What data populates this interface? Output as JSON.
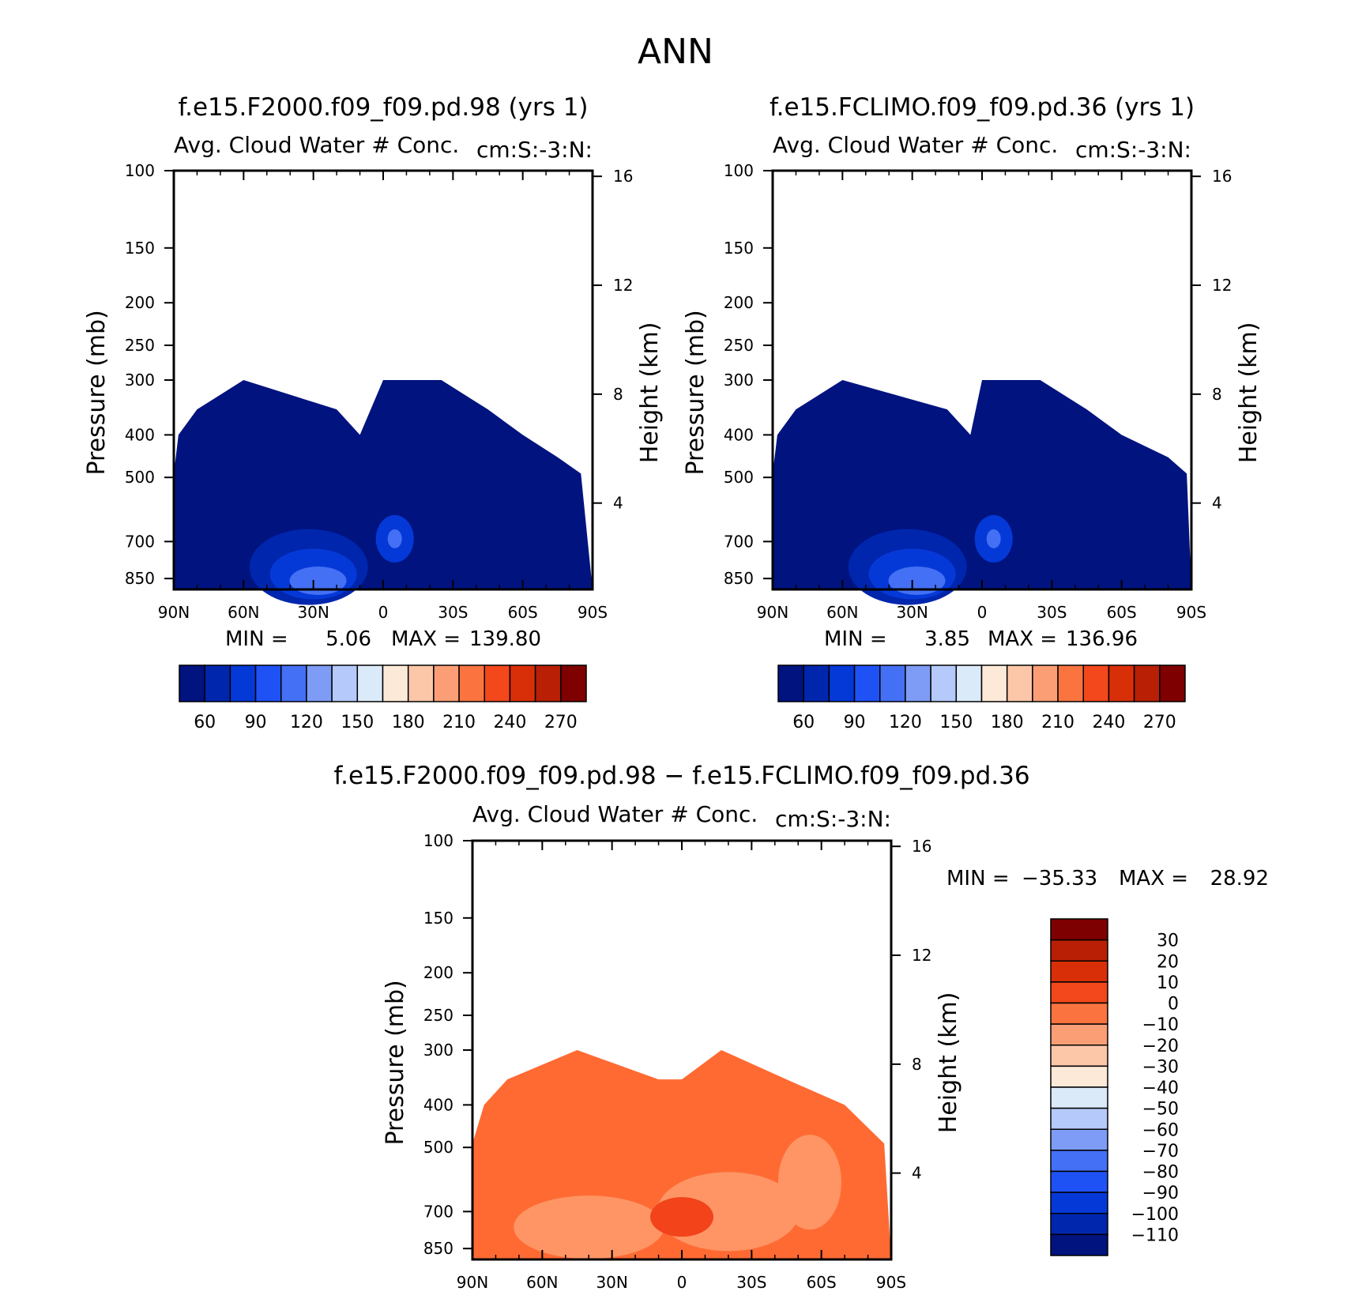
{
  "figure": {
    "title": "ANN"
  },
  "colors": {
    "field_fill": "#00137f",
    "diff_fill": "#ff6a33",
    "diff_fill_light": "#ff9565",
    "diff_fill_dark": "#f2431a",
    "axis": "#000000"
  },
  "chart_data": [
    {
      "type": "contour",
      "id": "panel1",
      "case_title": "f.e15.F2000.f09_f09.pd.98 (yrs 1)",
      "variable_title": "Avg. Cloud Water # Conc.",
      "units": "cm:S:-3:N:",
      "xlabel": "",
      "ylabel": "Pressure (mb)",
      "ylabel_right": "Height (km)",
      "x_ticks": [
        "90N",
        "60N",
        "30N",
        "0",
        "30S",
        "60S",
        "90S"
      ],
      "x_range": [
        90,
        -90
      ],
      "y_ticks": [
        100,
        150,
        200,
        250,
        300,
        400,
        500,
        700,
        850
      ],
      "y_range": [
        100,
        900
      ],
      "y_scale": "log",
      "height_ticks": [
        4,
        8,
        12,
        16
      ],
      "min_label": "MIN =",
      "min": "5.06",
      "max_label": "MAX =",
      "max": "139.80",
      "colorbar_labels": [
        "60",
        "90",
        "120",
        "150",
        "180",
        "210",
        "240",
        "270"
      ],
      "colorbar_colors": [
        "#00137f",
        "#0026ad",
        "#0539d7",
        "#1f52f5",
        "#4470f5",
        "#7e9cf5",
        "#b5c9fa",
        "#dbeaf9",
        "#fde9d7",
        "#fcc7a9",
        "#fb9e76",
        "#fb7440",
        "#f2481c",
        "#d82f08",
        "#b81f04",
        "#7f0000"
      ],
      "field_top_profile": [
        {
          "lat": 90,
          "p": 490
        },
        {
          "lat": 88,
          "p": 400
        },
        {
          "lat": 80,
          "p": 350
        },
        {
          "lat": 60,
          "p": 300
        },
        {
          "lat": 20,
          "p": 350
        },
        {
          "lat": 10,
          "p": 400
        },
        {
          "lat": 0,
          "p": 300
        },
        {
          "lat": -25,
          "p": 300
        },
        {
          "lat": -45,
          "p": 350
        },
        {
          "lat": -60,
          "p": 400
        },
        {
          "lat": -75,
          "p": 450
        },
        {
          "lat": -85,
          "p": 490
        },
        {
          "lat": -90,
          "p": 900
        }
      ]
    },
    {
      "type": "contour",
      "id": "panel2",
      "case_title": "f.e15.FCLIMO.f09_f09.pd.36 (yrs 1)",
      "variable_title": "Avg. Cloud Water # Conc.",
      "units": "cm:S:-3:N:",
      "xlabel": "",
      "ylabel": "Pressure (mb)",
      "ylabel_right": "Height (km)",
      "x_ticks": [
        "90N",
        "60N",
        "30N",
        "0",
        "30S",
        "60S",
        "90S"
      ],
      "x_range": [
        90,
        -90
      ],
      "y_ticks": [
        100,
        150,
        200,
        250,
        300,
        400,
        500,
        700,
        850
      ],
      "y_range": [
        100,
        900
      ],
      "y_scale": "log",
      "height_ticks": [
        4,
        8,
        12,
        16
      ],
      "min_label": "MIN =",
      "min": "3.85",
      "max_label": "MAX =",
      "max": "136.96",
      "colorbar_labels": [
        "60",
        "90",
        "120",
        "150",
        "180",
        "210",
        "240",
        "270"
      ],
      "colorbar_colors": [
        "#00137f",
        "#0026ad",
        "#0539d7",
        "#1f52f5",
        "#4470f5",
        "#7e9cf5",
        "#b5c9fa",
        "#dbeaf9",
        "#fde9d7",
        "#fcc7a9",
        "#fb9e76",
        "#fb7440",
        "#f2481c",
        "#d82f08",
        "#b81f04",
        "#7f0000"
      ],
      "field_top_profile": [
        {
          "lat": 90,
          "p": 490
        },
        {
          "lat": 88,
          "p": 400
        },
        {
          "lat": 80,
          "p": 350
        },
        {
          "lat": 60,
          "p": 300
        },
        {
          "lat": 15,
          "p": 350
        },
        {
          "lat": 5,
          "p": 400
        },
        {
          "lat": 0,
          "p": 300
        },
        {
          "lat": -25,
          "p": 300
        },
        {
          "lat": -45,
          "p": 350
        },
        {
          "lat": -60,
          "p": 400
        },
        {
          "lat": -80,
          "p": 450
        },
        {
          "lat": -88,
          "p": 490
        },
        {
          "lat": -90,
          "p": 900
        }
      ]
    },
    {
      "type": "contour",
      "id": "panel3",
      "case_title": "f.e15.F2000.f09_f09.pd.98 − f.e15.FCLIMO.f09_f09.pd.36",
      "variable_title": "Avg. Cloud Water # Conc.",
      "units": "cm:S:-3:N:",
      "xlabel": "",
      "ylabel": "Pressure (mb)",
      "ylabel_right": "Height (km)",
      "x_ticks": [
        "90N",
        "60N",
        "30N",
        "0",
        "30S",
        "60S",
        "90S"
      ],
      "x_range": [
        90,
        -90
      ],
      "y_ticks": [
        100,
        150,
        200,
        250,
        300,
        400,
        500,
        700,
        850
      ],
      "y_range": [
        100,
        900
      ],
      "y_scale": "log",
      "height_ticks": [
        4,
        8,
        12,
        16
      ],
      "min_label": "MIN =",
      "min": "−35.33",
      "max_label": "MAX =",
      "max": "28.92",
      "colorbar_labels": [
        "30",
        "20",
        "10",
        "0",
        "−10",
        "−20",
        "−30",
        "−40",
        "−50",
        "−60",
        "−70",
        "−80",
        "−90",
        "−100",
        "−110"
      ],
      "colorbar_colors": [
        "#7f0000",
        "#b81f04",
        "#d82f08",
        "#f2481c",
        "#fb7440",
        "#fb9e76",
        "#fcc7a9",
        "#fde9d7",
        "#dbeaf9",
        "#b5c9fa",
        "#7e9cf5",
        "#4470f5",
        "#1f52f5",
        "#0539d7",
        "#0026ad",
        "#00137f"
      ],
      "field_top_profile": [
        {
          "lat": 90,
          "p": 490
        },
        {
          "lat": 85,
          "p": 400
        },
        {
          "lat": 75,
          "p": 350
        },
        {
          "lat": 45,
          "p": 300
        },
        {
          "lat": 10,
          "p": 350
        },
        {
          "lat": 0,
          "p": 350
        },
        {
          "lat": -17,
          "p": 300
        },
        {
          "lat": -45,
          "p": 350
        },
        {
          "lat": -70,
          "p": 400
        },
        {
          "lat": -87,
          "p": 490
        },
        {
          "lat": -90,
          "p": 900
        }
      ]
    }
  ]
}
